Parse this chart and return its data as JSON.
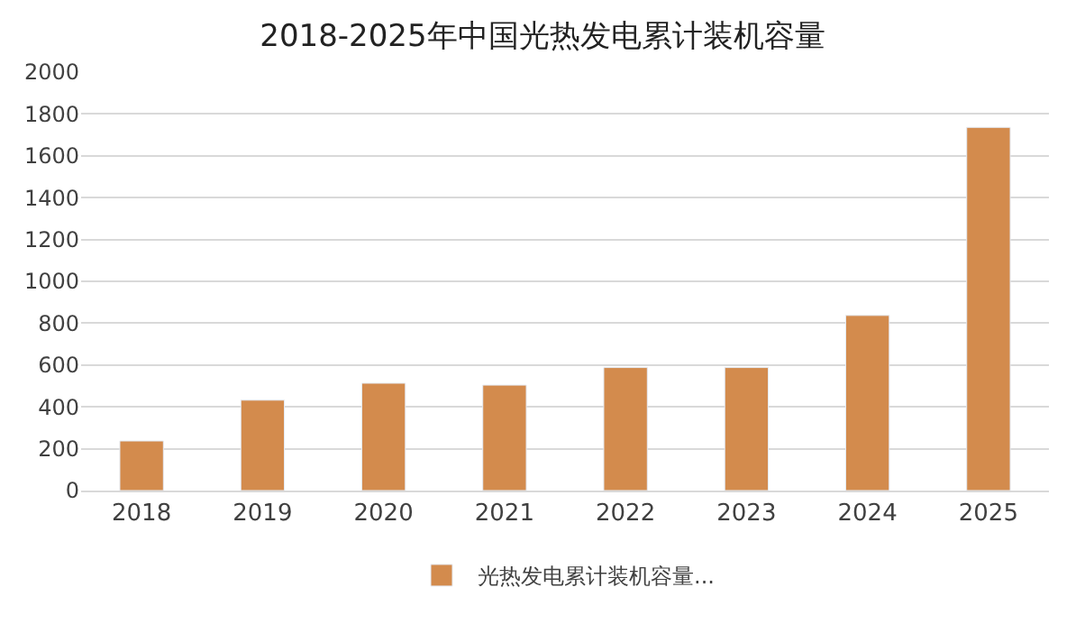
{
  "chart_data": {
    "type": "bar",
    "title": "2018-2025年中国光热发电累计装机容量",
    "categories": [
      "2018",
      "2019",
      "2020",
      "2021",
      "2022",
      "2023",
      "2024",
      "2025"
    ],
    "series": [
      {
        "name": "光热发电累计装机容量...",
        "color": "#d38b4d",
        "values": [
          237,
          432,
          513,
          504,
          588,
          588,
          837,
          1736
        ]
      }
    ],
    "ylim": [
      0,
      2000
    ],
    "yticks": [
      0,
      200,
      400,
      600,
      800,
      1000,
      1200,
      1400,
      1600,
      1800,
      2000
    ],
    "grid": "y",
    "legend": "bottom"
  }
}
